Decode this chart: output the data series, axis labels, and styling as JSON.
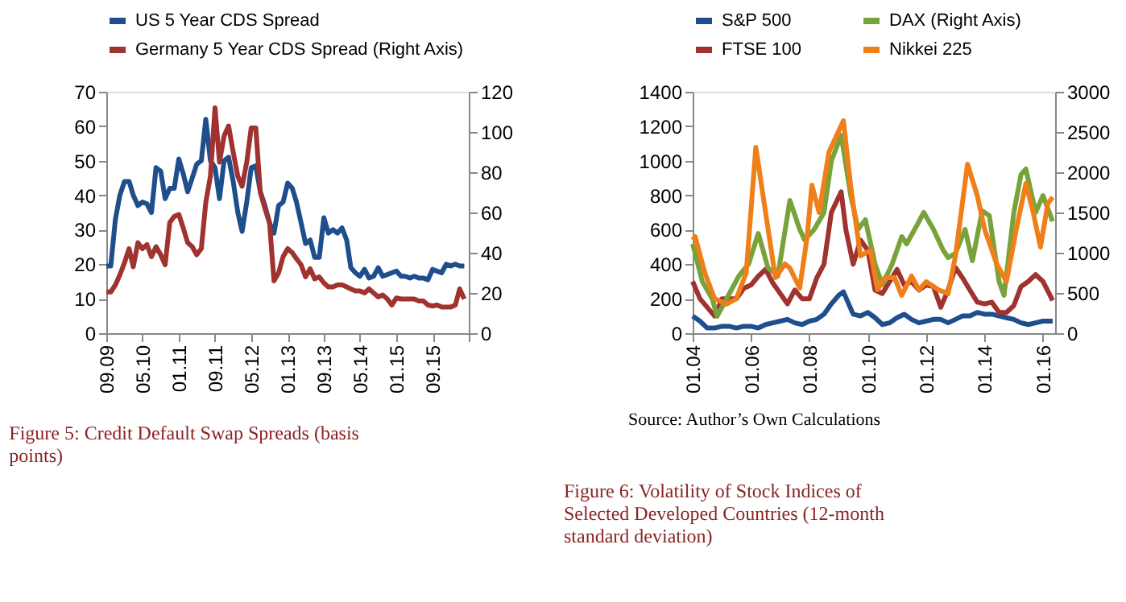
{
  "chart_data": [
    {
      "type": "line",
      "title": "Figure 5: Credit Default Swap Spreads (basis points)",
      "legend": "top",
      "grid": false,
      "marker": "none",
      "line_style": "solid",
      "x": [
        "2009-09",
        "2009-10",
        "2009-11",
        "2009-12",
        "2010-01",
        "2010-02",
        "2010-03",
        "2010-04",
        "2010-05",
        "2010-06",
        "2010-07",
        "2010-08",
        "2010-09",
        "2010-10",
        "2010-11",
        "2010-12",
        "2011-01",
        "2011-02",
        "2011-03",
        "2011-04",
        "2011-05",
        "2011-06",
        "2011-07",
        "2011-08",
        "2011-09",
        "2011-10",
        "2011-11",
        "2011-12",
        "2012-01",
        "2012-02",
        "2012-03",
        "2012-04",
        "2012-05",
        "2012-06",
        "2012-07",
        "2012-08",
        "2012-09",
        "2012-10",
        "2012-11",
        "2012-12",
        "2013-01",
        "2013-02",
        "2013-03",
        "2013-04",
        "2013-05",
        "2013-06",
        "2013-07",
        "2013-08",
        "2013-09",
        "2013-10",
        "2013-11",
        "2013-12",
        "2014-01",
        "2014-02",
        "2014-03",
        "2014-04",
        "2014-05",
        "2014-06",
        "2014-07",
        "2014-08",
        "2014-09",
        "2014-10",
        "2014-11",
        "2014-12",
        "2015-01",
        "2015-02",
        "2015-03",
        "2015-04",
        "2015-05",
        "2015-06",
        "2015-07",
        "2015-08",
        "2015-09",
        "2015-10",
        "2015-11",
        "2015-12",
        "2016-01",
        "2016-02",
        "2016-03",
        "2016-04"
      ],
      "xlim": [
        "2009-09",
        "2016-05"
      ],
      "xticks": [
        {
          "value": "2009-09",
          "label": "09.09"
        },
        {
          "value": "2010-05",
          "label": "05.10"
        },
        {
          "value": "2011-01",
          "label": "01.11"
        },
        {
          "value": "2011-09",
          "label": "09.11"
        },
        {
          "value": "2012-05",
          "label": "05.12"
        },
        {
          "value": "2013-01",
          "label": "01.13"
        },
        {
          "value": "2013-09",
          "label": "09.13"
        },
        {
          "value": "2014-05",
          "label": "05.14"
        },
        {
          "value": "2015-01",
          "label": "01.15"
        },
        {
          "value": "2015-09",
          "label": "09.15"
        },
        {
          "value": "2016-05",
          "label": null
        }
      ],
      "ylim": [
        0,
        70
      ],
      "yticks": [
        0,
        10,
        20,
        30,
        40,
        50,
        60,
        70
      ],
      "y2lim": [
        0,
        120
      ],
      "y2ticks": [
        0,
        20,
        40,
        60,
        80,
        100,
        120
      ],
      "series": [
        {
          "name": "US 5 Year CDS Spread",
          "color": "#1f4e8c",
          "values": [
            19.5,
            19.5,
            33,
            40,
            44,
            44,
            40,
            37,
            38,
            37.5,
            35,
            48,
            47,
            39,
            42,
            42,
            50.5,
            46,
            41,
            45,
            49,
            50,
            62,
            50,
            48,
            39,
            50,
            51,
            44,
            35,
            29.5,
            38,
            48,
            48.5,
            41,
            37,
            32,
            29,
            37,
            38,
            43.5,
            42,
            38,
            32,
            26,
            27,
            22,
            22,
            33.5,
            29,
            30,
            29,
            30.5,
            27,
            19,
            17.5,
            16.5,
            18.5,
            16,
            16.5,
            19,
            16.5,
            17,
            17.5,
            18,
            16.5,
            16.5,
            16,
            16.5,
            16,
            16,
            15.5,
            18.5,
            18,
            17.5,
            20,
            19.5,
            20,
            19.5,
            19.5
          ]
        },
        {
          "name": "Germany 5 Year CDS Spread (Right Axis)",
          "color": "#a0322f",
          "axis": "y2",
          "values": [
            20.5,
            20.5,
            24,
            29,
            35,
            42,
            33,
            45,
            42,
            44,
            38,
            43,
            39,
            34,
            55,
            58,
            59,
            52,
            45,
            43,
            39,
            42,
            65,
            78,
            112,
            85,
            98,
            103,
            90,
            78,
            73,
            85,
            102,
            102,
            70,
            62,
            55,
            26,
            30,
            38,
            42,
            40,
            37,
            34,
            28,
            32,
            27,
            28,
            25,
            23,
            23,
            24,
            24,
            23,
            22,
            21,
            21,
            20,
            22,
            20,
            18,
            19,
            17,
            14,
            17.5,
            17,
            17,
            17,
            17,
            16,
            16,
            14,
            13.5,
            14,
            13,
            13,
            13,
            14,
            22,
            17
          ]
        }
      ]
    },
    {
      "type": "line",
      "title": "Figure 6: Volatility of Stock Indices of Selected Developed Countries (12-month standard deviation)",
      "legend": "top",
      "grid": false,
      "marker": "none",
      "line_style": "solid",
      "xlim": [
        "2004-01",
        "2016-06"
      ],
      "xticks": [
        {
          "value": "2004-01",
          "label": "01.04"
        },
        {
          "value": "2006-01",
          "label": "01.06"
        },
        {
          "value": "2008-01",
          "label": "01.08"
        },
        {
          "value": "2010-01",
          "label": "01.10"
        },
        {
          "value": "2012-01",
          "label": "01.12"
        },
        {
          "value": "2014-01",
          "label": "01.14"
        },
        {
          "value": "2016-01",
          "label": "01.16"
        }
      ],
      "ylim": [
        0,
        1400
      ],
      "yticks": [
        0,
        200,
        400,
        600,
        800,
        1000,
        1200,
        1400
      ],
      "y2lim": [
        0,
        3000
      ],
      "y2ticks": [
        0,
        500,
        1000,
        1500,
        2000,
        2500,
        3000
      ],
      "annotations": [
        "Source: Author’s Own Calculations"
      ],
      "series": [
        {
          "name": "S&P 500",
          "color": "#1f4e8c",
          "x": [
            "2004-01",
            "2004-04",
            "2004-07",
            "2004-10",
            "2005-01",
            "2005-04",
            "2005-07",
            "2005-10",
            "2006-01",
            "2006-04",
            "2006-07",
            "2006-10",
            "2007-01",
            "2007-04",
            "2007-07",
            "2007-10",
            "2008-01",
            "2008-04",
            "2008-07",
            "2008-10",
            "2009-01",
            "2009-03",
            "2009-07",
            "2009-10",
            "2010-01",
            "2010-04",
            "2010-07",
            "2010-10",
            "2011-01",
            "2011-04",
            "2011-07",
            "2011-10",
            "2012-01",
            "2012-04",
            "2012-07",
            "2012-10",
            "2013-01",
            "2013-04",
            "2013-07",
            "2013-10",
            "2014-01",
            "2014-04",
            "2014-07",
            "2014-10",
            "2015-01",
            "2015-04",
            "2015-07",
            "2015-10",
            "2016-01",
            "2016-05"
          ],
          "values": [
            100,
            70,
            30,
            30,
            40,
            40,
            30,
            40,
            40,
            30,
            50,
            60,
            70,
            80,
            60,
            50,
            70,
            80,
            110,
            170,
            220,
            240,
            110,
            100,
            120,
            90,
            50,
            60,
            90,
            110,
            80,
            60,
            70,
            80,
            80,
            60,
            80,
            100,
            100,
            120,
            110,
            110,
            100,
            90,
            80,
            60,
            50,
            60,
            70,
            70
          ]
        },
        {
          "name": "FTSE 100",
          "color": "#a0322f",
          "x": [
            "2004-01",
            "2004-04",
            "2004-07",
            "2004-10",
            "2005-01",
            "2005-04",
            "2005-07",
            "2005-10",
            "2006-01",
            "2006-04",
            "2006-07",
            "2006-10",
            "2007-01",
            "2007-04",
            "2007-07",
            "2007-10",
            "2008-01",
            "2008-04",
            "2008-07",
            "2008-10",
            "2009-02",
            "2009-04",
            "2009-07",
            "2009-10",
            "2010-01",
            "2010-04",
            "2010-07",
            "2010-10",
            "2011-01",
            "2011-04",
            "2011-07",
            "2011-10",
            "2012-01",
            "2012-04",
            "2012-07",
            "2012-10",
            "2013-01",
            "2013-04",
            "2013-07",
            "2013-10",
            "2014-01",
            "2014-04",
            "2014-07",
            "2014-10",
            "2015-01",
            "2015-04",
            "2015-07",
            "2015-10",
            "2016-01",
            "2016-05"
          ],
          "values": [
            300,
            200,
            150,
            100,
            200,
            200,
            200,
            260,
            280,
            330,
            370,
            290,
            230,
            170,
            250,
            200,
            200,
            320,
            400,
            700,
            820,
            600,
            400,
            540,
            480,
            250,
            230,
            300,
            370,
            280,
            300,
            250,
            280,
            270,
            150,
            250,
            380,
            320,
            250,
            180,
            170,
            180,
            120,
            120,
            160,
            270,
            300,
            340,
            300,
            190
          ]
        },
        {
          "name": "DAX (Right Axis)",
          "color": "#77a33a",
          "axis": "y2",
          "x": [
            "2004-01",
            "2004-05",
            "2004-09",
            "2004-11",
            "2005-03",
            "2005-08",
            "2005-12",
            "2006-04",
            "2006-08",
            "2006-12",
            "2007-05",
            "2007-09",
            "2007-11",
            "2008-03",
            "2008-07",
            "2008-10",
            "2009-02",
            "2009-06",
            "2009-09",
            "2009-12",
            "2010-04",
            "2010-07",
            "2010-11",
            "2011-03",
            "2011-05",
            "2011-09",
            "2011-12",
            "2012-04",
            "2012-08",
            "2012-10",
            "2013-01",
            "2013-05",
            "2013-08",
            "2013-12",
            "2014-03",
            "2014-07",
            "2014-09",
            "2015-01",
            "2015-04",
            "2015-06",
            "2015-10",
            "2016-01",
            "2016-05"
          ],
          "values": [
            1110,
            640,
            430,
            210,
            430,
            710,
            860,
            1240,
            810,
            710,
            1650,
            1290,
            1160,
            1290,
            1500,
            2140,
            2460,
            1710,
            1290,
            1410,
            860,
            600,
            860,
            1200,
            1110,
            1330,
            1500,
            1290,
            1030,
            940,
            990,
            1290,
            900,
            1520,
            1460,
            640,
            470,
            1500,
            1970,
            2040,
            1500,
            1710,
            1390
          ]
        },
        {
          "name": "Nikkei 225",
          "color": "#f07f1a",
          "axis": "y2",
          "x": [
            "2004-01",
            "2004-02",
            "2004-06",
            "2004-10",
            "2005-03",
            "2005-07",
            "2005-11",
            "2006-03",
            "2006-07",
            "2006-11",
            "2007-03",
            "2007-05",
            "2007-09",
            "2007-12",
            "2008-02",
            "2008-05",
            "2008-09",
            "2009-03",
            "2009-06",
            "2009-10",
            "2010-02",
            "2010-05",
            "2010-08",
            "2010-12",
            "2011-03",
            "2011-07",
            "2011-10",
            "2012-01",
            "2012-06",
            "2012-10",
            "2013-01",
            "2013-06",
            "2013-10",
            "2014-01",
            "2014-06",
            "2014-10",
            "2015-02",
            "2015-06",
            "2015-09",
            "2015-12",
            "2016-03",
            "2016-05"
          ],
          "values": [
            1160,
            1200,
            750,
            430,
            360,
            430,
            750,
            2310,
            1500,
            690,
            860,
            810,
            560,
            1180,
            1840,
            1500,
            2250,
            2640,
            1820,
            960,
            1030,
            540,
            690,
            690,
            470,
            710,
            540,
            640,
            540,
            490,
            960,
            2100,
            1710,
            1290,
            860,
            640,
            1290,
            1860,
            1500,
            1070,
            1610,
            1690
          ]
        }
      ]
    }
  ]
}
